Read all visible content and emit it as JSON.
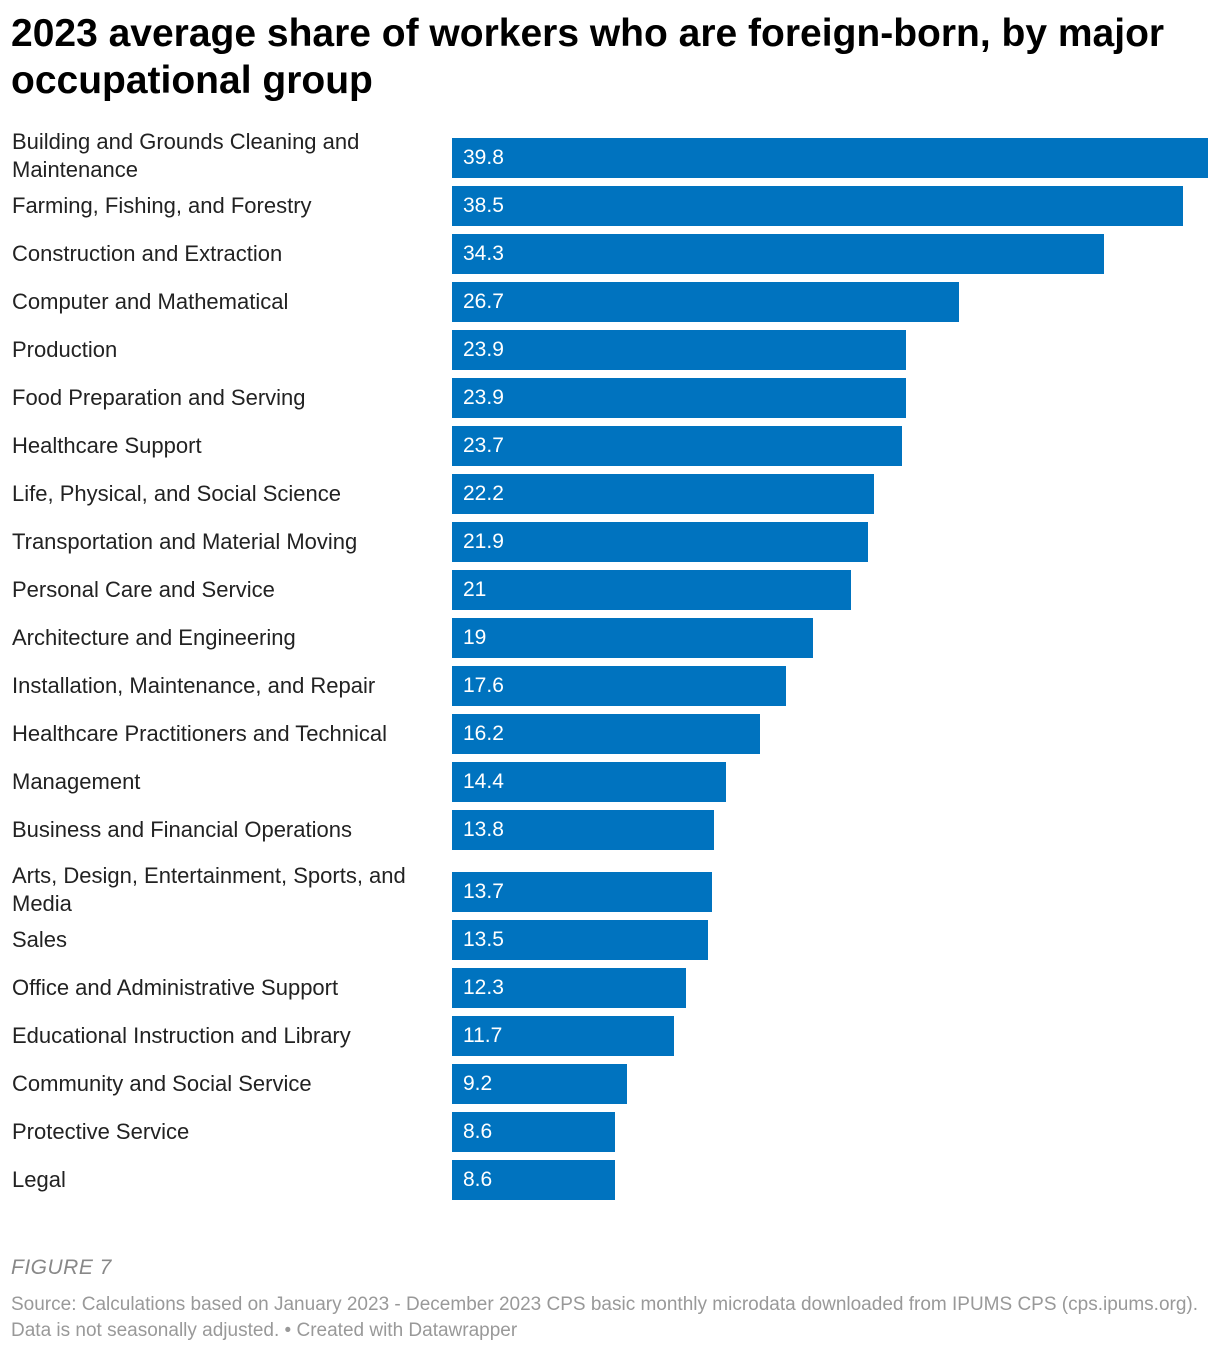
{
  "chart_data": {
    "type": "bar",
    "orientation": "horizontal",
    "title": "2023 average share of workers who are foreign-born, by major occupational group",
    "categories": [
      "Building and Grounds Cleaning and Maintenance",
      "Farming, Fishing, and Forestry",
      "Construction and Extraction",
      "Computer and Mathematical",
      "Production",
      "Food Preparation and Serving",
      "Healthcare Support",
      "Life, Physical, and Social Science",
      "Transportation and Material Moving",
      "Personal Care and Service",
      "Architecture and Engineering",
      "Installation, Maintenance, and Repair",
      "Healthcare Practitioners and Technical",
      "Management",
      "Business and Financial Operations",
      "Arts, Design, Entertainment, Sports, and Media",
      "Sales",
      "Office and Administrative Support",
      "Educational Instruction and Library",
      "Community and Social Service",
      "Protective Service",
      "Legal"
    ],
    "values": [
      39.8,
      38.5,
      34.3,
      26.7,
      23.9,
      23.9,
      23.7,
      22.2,
      21.9,
      21,
      19,
      17.6,
      16.2,
      14.4,
      13.8,
      13.7,
      13.5,
      12.3,
      11.7,
      9.2,
      8.6,
      8.6
    ],
    "value_labels": [
      "39.8",
      "38.5",
      "34.3",
      "26.7",
      "23.9",
      "23.9",
      "23.7",
      "22.2",
      "21.9",
      "21",
      "19",
      "17.6",
      "16.2",
      "14.4",
      "13.8",
      "13.7",
      "13.5",
      "12.3",
      "11.7",
      "9.2",
      "8.6",
      "8.6"
    ],
    "xlim": [
      0,
      39.8
    ],
    "bar_color": "#0073bf"
  },
  "footer": {
    "figure_label": "FIGURE 7",
    "source": "Source: Calculations based on January 2023 - December 2023 CPS basic monthly microdata downloaded from IPUMS CPS (cps.ipums.org). Data is not seasonally adjusted. • Created with Datawrapper"
  }
}
